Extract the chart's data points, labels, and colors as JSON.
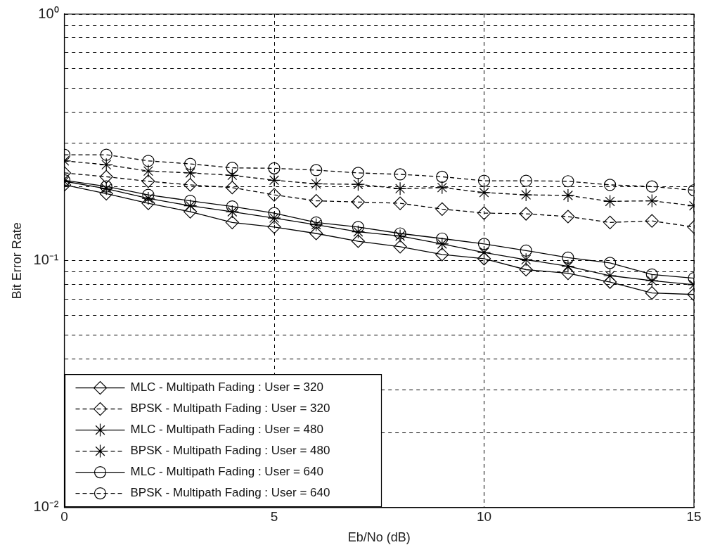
{
  "chart_data": {
    "type": "line",
    "xlabel": "Eb/No (dB)",
    "ylabel": "Bit Error Rate",
    "x": [
      0,
      1,
      2,
      3,
      4,
      5,
      6,
      7,
      8,
      9,
      10,
      11,
      12,
      13,
      14,
      15
    ],
    "series": [
      {
        "name": "MLC - Multipath Fading : User = 320",
        "color": "#000000",
        "marker": "diamond",
        "line_style": "solid",
        "values": [
          0.203,
          0.187,
          0.171,
          0.158,
          0.143,
          0.137,
          0.129,
          0.12,
          0.114,
          0.106,
          0.102,
          0.092,
          0.089,
          0.082,
          0.074,
          0.073
        ]
      },
      {
        "name": "BPSK - Multipath Fading : User = 320",
        "color": "#000000",
        "marker": "diamond",
        "line_style": "dashed",
        "values": [
          0.227,
          0.219,
          0.21,
          0.203,
          0.198,
          0.185,
          0.175,
          0.173,
          0.171,
          0.162,
          0.156,
          0.155,
          0.151,
          0.143,
          0.145,
          0.137
        ]
      },
      {
        "name": "MLC - Multipath Fading : User = 480",
        "color": "#000000",
        "marker": "cross",
        "line_style": "solid",
        "values": [
          0.21,
          0.196,
          0.179,
          0.167,
          0.158,
          0.149,
          0.14,
          0.131,
          0.126,
          0.117,
          0.108,
          0.101,
          0.095,
          0.087,
          0.083,
          0.08
        ]
      },
      {
        "name": "BPSK - Multipath Fading : User = 480",
        "color": "#000000",
        "marker": "cross",
        "line_style": "dashed",
        "values": [
          0.254,
          0.245,
          0.231,
          0.227,
          0.222,
          0.212,
          0.205,
          0.204,
          0.196,
          0.198,
          0.189,
          0.185,
          0.184,
          0.174,
          0.175,
          0.167
        ]
      },
      {
        "name": "MLC - Multipath Fading : User = 640",
        "color": "#000000",
        "marker": "circle",
        "line_style": "solid",
        "values": [
          0.212,
          0.2,
          0.185,
          0.175,
          0.166,
          0.156,
          0.143,
          0.137,
          0.129,
          0.123,
          0.117,
          0.11,
          0.103,
          0.098,
          0.088,
          0.085
        ]
      },
      {
        "name": "BPSK - Multipath Fading : User = 640",
        "color": "#000000",
        "marker": "circle",
        "line_style": "dashed",
        "values": [
          0.269,
          0.269,
          0.254,
          0.247,
          0.238,
          0.237,
          0.233,
          0.227,
          0.224,
          0.219,
          0.211,
          0.211,
          0.21,
          0.203,
          0.2,
          0.193
        ]
      }
    ],
    "xlim": [
      0,
      15
    ],
    "xticks": [
      0,
      5,
      10,
      15
    ],
    "ylim": [
      0.01,
      1
    ],
    "log": true,
    "yticks": [
      {
        "value": 0.01,
        "label": "10⁻²"
      },
      {
        "value": 0.02,
        "label": null
      },
      {
        "value": 0.03,
        "label": null
      },
      {
        "value": 0.04,
        "label": null
      },
      {
        "value": 0.05,
        "label": null
      },
      {
        "value": 0.06,
        "label": null
      },
      {
        "value": 0.07,
        "label": null
      },
      {
        "value": 0.08,
        "label": null
      },
      {
        "value": 0.09,
        "label": null
      },
      {
        "value": 0.1,
        "label": "10⁻¹"
      },
      {
        "value": 0.2,
        "label": null
      },
      {
        "value": 0.3,
        "label": null
      },
      {
        "value": 0.4,
        "label": null
      },
      {
        "value": 0.5,
        "label": null
      },
      {
        "value": 0.6,
        "label": null
      },
      {
        "value": 0.7,
        "label": null
      },
      {
        "value": 0.8,
        "label": null
      },
      {
        "value": 0.9,
        "label": null
      },
      {
        "value": 1,
        "label": "10⁰"
      }
    ],
    "grid": true,
    "legend": "bottom left"
  }
}
